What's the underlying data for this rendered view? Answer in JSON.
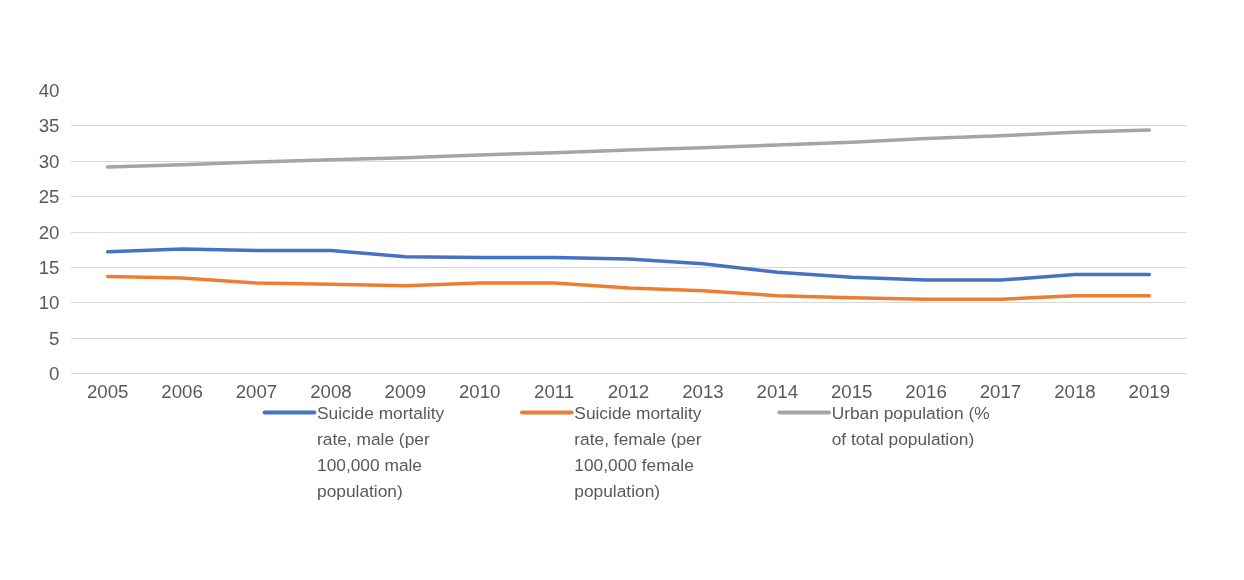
{
  "chart_data": {
    "type": "line",
    "categories": [
      "2005",
      "2006",
      "2007",
      "2008",
      "2009",
      "2010",
      "2011",
      "2012",
      "2013",
      "2014",
      "2015",
      "2016",
      "2017",
      "2018",
      "2019"
    ],
    "ylim": [
      0,
      40
    ],
    "yticks": [
      0,
      5,
      10,
      15,
      20,
      25,
      30,
      35,
      40
    ],
    "grid": "y",
    "legend": "bottom",
    "line_style": "solid",
    "marker": "none",
    "series": [
      {
        "name": "Suicide mortality rate, male (per 100,000 male population)",
        "color": "#4472c4",
        "values": [
          17.2,
          17.6,
          17.4,
          17.4,
          16.5,
          16.4,
          16.4,
          16.2,
          15.5,
          14.3,
          13.6,
          13.2,
          13.2,
          14.0,
          14.0
        ]
      },
      {
        "name": "Suicide mortality rate, female (per 100,000 female population)",
        "color": "#ed7d31",
        "values": [
          13.7,
          13.5,
          12.8,
          12.6,
          12.4,
          12.8,
          12.8,
          12.1,
          11.7,
          11.0,
          10.7,
          10.5,
          10.5,
          11.0,
          11.0
        ]
      },
      {
        "name": "Urban population (% of total population)",
        "color": "#a5a5a5",
        "values": [
          29.2,
          29.5,
          29.9,
          30.2,
          30.5,
          30.9,
          31.2,
          31.6,
          31.9,
          32.3,
          32.7,
          33.2,
          33.6,
          34.1,
          34.4
        ]
      }
    ]
  }
}
